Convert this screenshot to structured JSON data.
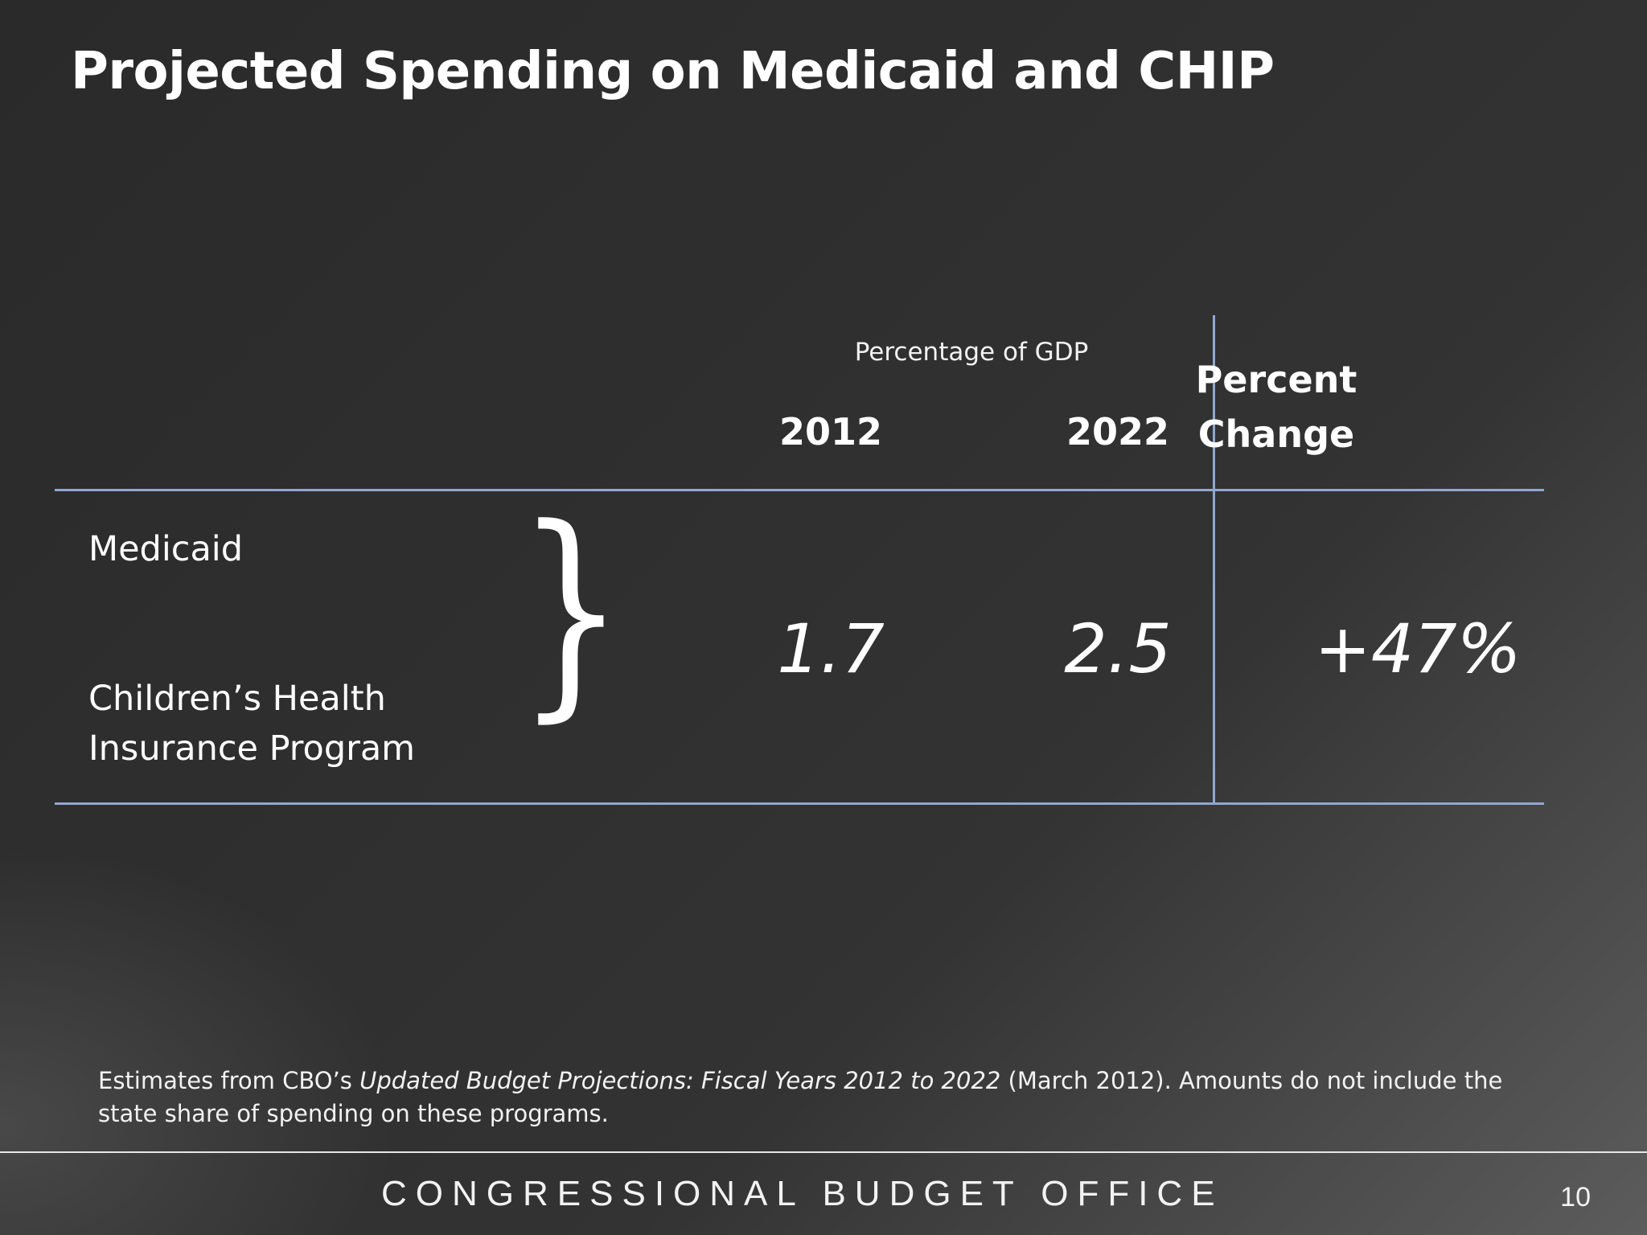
{
  "slide": {
    "title": "Projected Spending on Medicaid and CHIP"
  },
  "table": {
    "header_group": "Percentage of GDP",
    "years": [
      "2012",
      "2022"
    ],
    "change_header": [
      "Percent",
      "Change"
    ],
    "rows": [
      {
        "label": "Medicaid"
      },
      {
        "label_lines": [
          "Children’s Health",
          "Insurance Program"
        ]
      }
    ],
    "brace_glyph": "}",
    "values": {
      "y2012": "1.7",
      "y2022": "2.5",
      "change": "+47%"
    }
  },
  "footnote": {
    "prefix": "Estimates from CBO’s ",
    "title_italic": "Updated Budget Projections: Fiscal Years 2012 to 2022",
    "suffix": " (March 2012). Amounts do not include the state share of spending on these programs."
  },
  "footer": {
    "organization": "CONGRESSIONAL BUDGET OFFICE",
    "page_number": "10"
  }
}
